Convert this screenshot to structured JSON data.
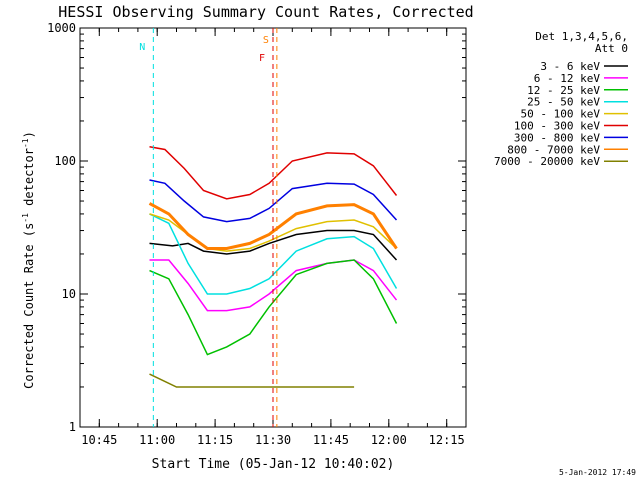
{
  "chart_data": {
    "type": "line",
    "title": "HESSI Observing Summary Count Rates, Corrected",
    "xlabel": "Start Time (05-Jan-12 10:40:02)",
    "ylabel_main": "Corrected Count Rate (s",
    "ylabel_sup1": "-1",
    "ylabel_mid": " detector",
    "ylabel_sup2": "-1",
    "ylabel_end": ")",
    "yscale": "log",
    "ylim": [
      1,
      1000
    ],
    "xlim": [
      "10:40",
      "12:20"
    ],
    "x_ticks": [
      "10:45",
      "11:00",
      "11:15",
      "11:30",
      "11:45",
      "12:00",
      "12:15"
    ],
    "y_ticks": [
      "1",
      "10",
      "100",
      "1000"
    ],
    "legend_header": [
      "Det 1,3,4,5,6,",
      "Att 0"
    ],
    "legend_position": "right",
    "footer": "5-Jan-2012 17:49",
    "series": [
      {
        "name": "3 - 6 keV",
        "color": "#000000",
        "points": [
          [
            "10:58",
            24
          ],
          [
            "11:04",
            23
          ],
          [
            "11:08",
            24
          ],
          [
            "11:12",
            21
          ],
          [
            "11:18",
            20
          ],
          [
            "11:24",
            21
          ],
          [
            "11:29",
            24
          ],
          [
            "11:36",
            28
          ],
          [
            "11:44",
            30
          ],
          [
            "11:51",
            30
          ],
          [
            "11:56",
            28
          ],
          [
            "12:02",
            18
          ]
        ]
      },
      {
        "name": "6 - 12 keV",
        "color": "#ff00ff",
        "points": [
          [
            "10:58",
            18
          ],
          [
            "11:03",
            18
          ],
          [
            "11:08",
            12
          ],
          [
            "11:13",
            7.5
          ],
          [
            "11:18",
            7.5
          ],
          [
            "11:24",
            8
          ],
          [
            "11:29",
            10
          ],
          [
            "11:36",
            15
          ],
          [
            "11:44",
            17
          ],
          [
            "11:51",
            18
          ],
          [
            "11:56",
            15
          ],
          [
            "12:02",
            9
          ]
        ]
      },
      {
        "name": "12 - 25 keV",
        "color": "#00c000",
        "points": [
          [
            "10:58",
            15
          ],
          [
            "11:03",
            13
          ],
          [
            "11:08",
            7
          ],
          [
            "11:13",
            3.5
          ],
          [
            "11:18",
            4
          ],
          [
            "11:24",
            5
          ],
          [
            "11:29",
            8
          ],
          [
            "11:36",
            14
          ],
          [
            "11:44",
            17
          ],
          [
            "11:51",
            18
          ],
          [
            "11:56",
            13
          ],
          [
            "12:02",
            6
          ]
        ]
      },
      {
        "name": "25 - 50 keV",
        "color": "#00e0e0",
        "points": [
          [
            "10:58",
            40
          ],
          [
            "11:03",
            34
          ],
          [
            "11:08",
            17
          ],
          [
            "11:13",
            10
          ],
          [
            "11:18",
            10
          ],
          [
            "11:24",
            11
          ],
          [
            "11:29",
            13
          ],
          [
            "11:36",
            21
          ],
          [
            "11:44",
            26
          ],
          [
            "11:51",
            27
          ],
          [
            "11:56",
            22
          ],
          [
            "12:02",
            11
          ]
        ]
      },
      {
        "name": "50 - 100 keV",
        "color": "#e0c000",
        "points": [
          [
            "10:58",
            40
          ],
          [
            "11:03",
            36
          ],
          [
            "11:08",
            28
          ],
          [
            "11:13",
            22
          ],
          [
            "11:18",
            21
          ],
          [
            "11:24",
            22
          ],
          [
            "11:29",
            25
          ],
          [
            "11:36",
            31
          ],
          [
            "11:44",
            35
          ],
          [
            "11:51",
            36
          ],
          [
            "11:56",
            32
          ],
          [
            "12:02",
            22
          ]
        ]
      },
      {
        "name": "100 - 300 keV",
        "color": "#e00000",
        "points": [
          [
            "10:58",
            128
          ],
          [
            "11:02",
            122
          ],
          [
            "11:07",
            88
          ],
          [
            "11:12",
            60
          ],
          [
            "11:18",
            52
          ],
          [
            "11:24",
            56
          ],
          [
            "11:29",
            68
          ],
          [
            "11:35",
            100
          ],
          [
            "11:44",
            115
          ],
          [
            "11:51",
            113
          ],
          [
            "11:56",
            92
          ],
          [
            "12:02",
            55
          ]
        ]
      },
      {
        "name": "300 - 800 keV",
        "color": "#0000e0",
        "points": [
          [
            "10:58",
            72
          ],
          [
            "11:02",
            68
          ],
          [
            "11:07",
            50
          ],
          [
            "11:12",
            38
          ],
          [
            "11:18",
            35
          ],
          [
            "11:24",
            37
          ],
          [
            "11:29",
            44
          ],
          [
            "11:35",
            62
          ],
          [
            "11:44",
            68
          ],
          [
            "11:51",
            67
          ],
          [
            "11:56",
            56
          ],
          [
            "12:02",
            36
          ]
        ]
      },
      {
        "name": "800 - 7000 keV",
        "color": "#ff8000",
        "points": [
          [
            "10:58",
            48
          ],
          [
            "11:03",
            40
          ],
          [
            "11:08",
            28
          ],
          [
            "11:13",
            22
          ],
          [
            "11:18",
            22
          ],
          [
            "11:24",
            24
          ],
          [
            "11:29",
            28
          ],
          [
            "11:36",
            40
          ],
          [
            "11:44",
            46
          ],
          [
            "11:51",
            47
          ],
          [
            "11:56",
            40
          ],
          [
            "12:02",
            22
          ]
        ]
      },
      {
        "name": "7000 - 20000 keV",
        "color": "#808000",
        "points": [
          [
            "10:58",
            2.5
          ],
          [
            "11:05",
            2
          ],
          [
            "11:36",
            2
          ],
          [
            "11:44",
            2
          ],
          [
            "11:51",
            2
          ]
        ]
      }
    ],
    "annotations": [
      {
        "label": "N",
        "color": "#00e0e0",
        "x": "10:59"
      },
      {
        "label": "S",
        "color": "#ff8000",
        "x": "11:31"
      },
      {
        "label": "F",
        "color": "#e00000",
        "x": "11:30"
      }
    ]
  }
}
